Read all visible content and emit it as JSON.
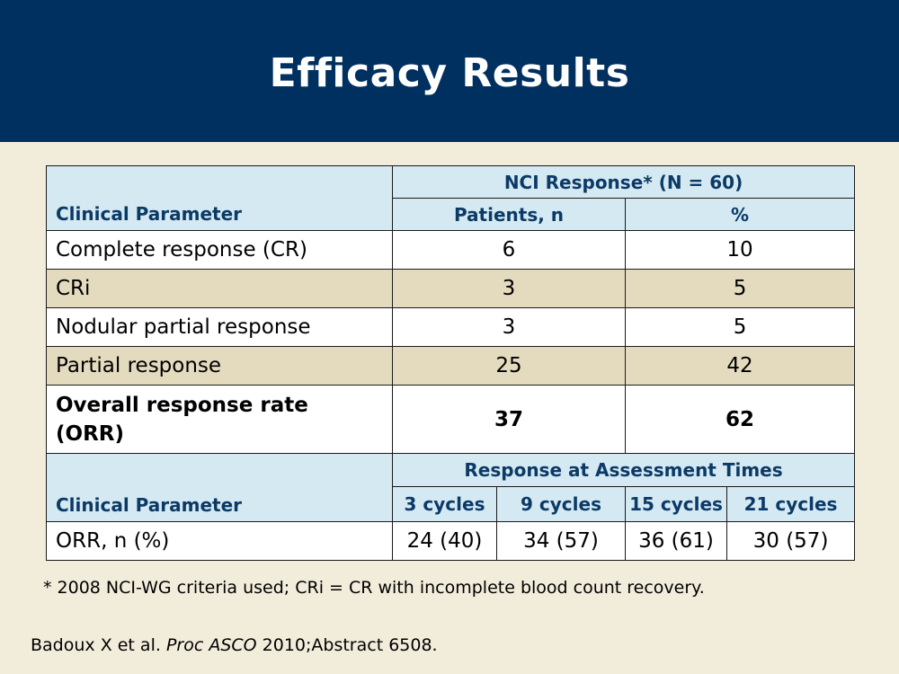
{
  "slide": {
    "title": "Efficacy Results"
  },
  "table": {
    "section1": {
      "param_header": "Clinical Parameter",
      "group_header": "NCI Response* (N = 60)",
      "col_patients": "Patients, n",
      "col_percent": "%",
      "rows": [
        {
          "label": "Complete response (CR)",
          "patients": "6",
          "percent": "10"
        },
        {
          "label": "CRi",
          "patients": "3",
          "percent": "5"
        },
        {
          "label": "Nodular partial response",
          "patients": "3",
          "percent": "5"
        },
        {
          "label": "Partial response",
          "patients": "25",
          "percent": "42"
        },
        {
          "label": "Overall response rate (ORR)",
          "patients": "37",
          "percent": "62"
        }
      ]
    },
    "section2": {
      "param_header": "Clinical Parameter",
      "group_header": "Response at Assessment Times",
      "cols": [
        "3 cycles",
        "9 cycles",
        "15 cycles",
        "21 cycles"
      ],
      "row": {
        "label": "ORR, n (%)",
        "values": [
          "24 (40)",
          "34 (57)",
          "36 (61)",
          "30 (57)"
        ]
      }
    }
  },
  "footnote": "* 2008 NCI-WG criteria used; CRi = CR with incomplete blood count recovery.",
  "citation": {
    "prefix": "Badoux X et al. ",
    "journal": "Proc ASCO",
    "suffix": " 2010;Abstract 6508."
  }
}
